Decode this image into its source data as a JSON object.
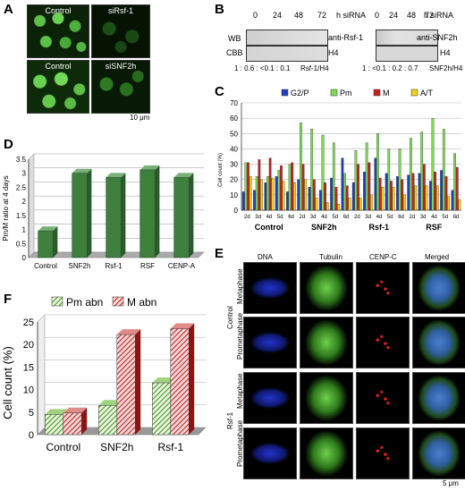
{
  "panels": {
    "A": "A",
    "B": "B",
    "C": "C",
    "D": "D",
    "E": "E",
    "F": "F"
  },
  "panelA": {
    "captions": [
      "Control",
      "siRsf-1",
      "Control",
      "siSNF2h"
    ],
    "scale": "10 μm"
  },
  "panelB": {
    "times": [
      "0",
      "24",
      "48",
      "72"
    ],
    "h_siRNA": "h siRNA",
    "left": {
      "row1": "WB",
      "row2": "CBB",
      "anti": "anti-Rsf-1",
      "h4": "H4",
      "ratio": "1 : 0.6 : <0.1 : 0.1",
      "ratio_label": "Rsf-1/H4"
    },
    "right": {
      "anti": "anti-SNF2h",
      "h4": "H4",
      "ratio": "1 : <0.1 : 0.2 : 0.7",
      "ratio_label": "SNF2h/H4"
    }
  },
  "chart_data": [
    {
      "id": "C",
      "type": "bar",
      "ylabel": "Cell count (%)",
      "ylim": [
        0,
        70
      ],
      "yticks": [
        0,
        10,
        20,
        30,
        40,
        50,
        60,
        70
      ],
      "legend": [
        "G2/P",
        "Pm",
        "M",
        "A/T"
      ],
      "colors": {
        "G2/P": "#1f3fbf",
        "Pm": "#7ed957",
        "M": "#cc1f1f",
        "A/T": "#f2d21a"
      },
      "days": [
        "2d",
        "3d",
        "4d",
        "5d",
        "6d"
      ],
      "groups": [
        {
          "name": "Control",
          "series": {
            "G2/P": [
              12,
              13,
              18,
              22,
              12
            ],
            "Pm": [
              31,
              22,
              22,
              26,
              30
            ],
            "M": [
              31,
              33,
              34,
              29,
              31
            ],
            "A/T": [
              22,
              20,
              21,
              19,
              18
            ]
          }
        },
        {
          "name": "SNF2h",
          "series": {
            "G2/P": [
              20,
              15,
              13,
              21,
              34
            ],
            "Pm": [
              57,
              53,
              49,
              44,
              24
            ],
            "M": [
              30,
              20,
              18,
              15,
              16
            ],
            "A/T": [
              20,
              8,
              5,
              4,
              8
            ]
          }
        },
        {
          "name": "Rsf-1",
          "series": {
            "G2/P": [
              18,
              25,
              34,
              24,
              22
            ],
            "Pm": [
              39,
              44,
              50,
              40,
              40
            ],
            "M": [
              30,
              31,
              21,
              19,
              20
            ],
            "A/T": [
              8,
              10,
              15,
              15,
              10
            ]
          }
        },
        {
          "name": "RSF",
          "series": {
            "G2/P": [
              23,
              24,
              19,
              26,
              13
            ],
            "Pm": [
              47,
              51,
              60,
              53,
              37
            ],
            "M": [
              24,
              30,
              25,
              22,
              28
            ],
            "A/T": [
              16,
              16,
              16,
              9,
              7
            ]
          }
        }
      ]
    },
    {
      "id": "D",
      "type": "bar",
      "ylabel": "Pm/M ratio at 4 days",
      "ylim": [
        0,
        3.5
      ],
      "yticks": [
        "0",
        "0.5",
        "1",
        "1.5",
        "2",
        "2.5",
        "3",
        "3.5"
      ],
      "categories": [
        "Control",
        "SNF2h",
        "Rsf-1",
        "RSF",
        "CENP-A"
      ],
      "values": [
        0.95,
        3.0,
        2.85,
        3.12,
        2.85
      ]
    },
    {
      "id": "F",
      "type": "bar",
      "ylabel": "Cell count (%)",
      "ylim": [
        0,
        25
      ],
      "yticks": [
        "0",
        "5",
        "10",
        "15",
        "20",
        "25"
      ],
      "categories": [
        "Control",
        "SNF2h",
        "Rsf-1"
      ],
      "series": [
        {
          "name": "Pm abn",
          "values": [
            4.5,
            6.5,
            11.5
          ]
        },
        {
          "name": "M abn",
          "values": [
            4.8,
            22.2,
            23.5
          ]
        }
      ]
    }
  ],
  "panelE": {
    "cols": [
      "DNA",
      "Tubulin",
      "CENP-C",
      "Merged"
    ],
    "group1": "Control",
    "group2": "Rsf-1",
    "rows": [
      "Metaphase",
      "Prometaphase",
      "Metaphase",
      "Prometaphase"
    ],
    "scale": "5 μm"
  }
}
